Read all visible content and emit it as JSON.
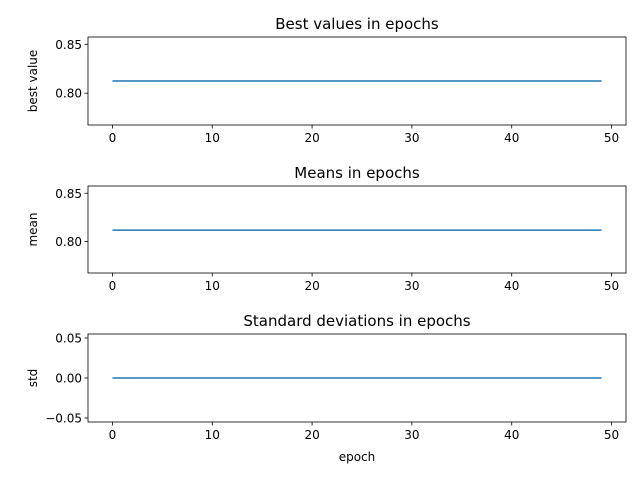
{
  "chart_data": [
    {
      "type": "line",
      "title": "Best values in epochs",
      "xlabel": "",
      "ylabel": "best value",
      "xlim": [
        -2.45,
        51.45
      ],
      "ylim": [
        0.7675,
        0.8575
      ],
      "xticks": [
        0,
        10,
        20,
        30,
        40,
        50
      ],
      "yticks": [
        0.8,
        0.85
      ],
      "ytick_labels": [
        "0.80",
        "0.85"
      ],
      "series": [
        {
          "x": [
            0,
            49
          ],
          "y": [
            0.8125,
            0.8125
          ],
          "color": "#1f77b4"
        }
      ]
    },
    {
      "type": "line",
      "title": "Means in epochs",
      "xlabel": "",
      "ylabel": "mean",
      "xlim": [
        -2.45,
        51.45
      ],
      "ylim": [
        0.7675,
        0.8575
      ],
      "xticks": [
        0,
        10,
        20,
        30,
        40,
        50
      ],
      "yticks": [
        0.8,
        0.85
      ],
      "ytick_labels": [
        "0.80",
        "0.85"
      ],
      "series": [
        {
          "x": [
            0,
            49
          ],
          "y": [
            0.8118,
            0.8118
          ],
          "color": "#1f77b4"
        }
      ]
    },
    {
      "type": "line",
      "title": "Standard deviations in epochs",
      "xlabel": "epoch",
      "ylabel": "std",
      "xlim": [
        -2.45,
        51.45
      ],
      "ylim": [
        -0.055,
        0.055
      ],
      "xticks": [
        0,
        10,
        20,
        30,
        40,
        50
      ],
      "yticks": [
        -0.05,
        0.0,
        0.05
      ],
      "ytick_labels": [
        "−0.05",
        "0.00",
        "0.05"
      ],
      "series": [
        {
          "x": [
            0,
            49
          ],
          "y": [
            0.0,
            0.0
          ],
          "color": "#1f77b4"
        }
      ]
    }
  ]
}
